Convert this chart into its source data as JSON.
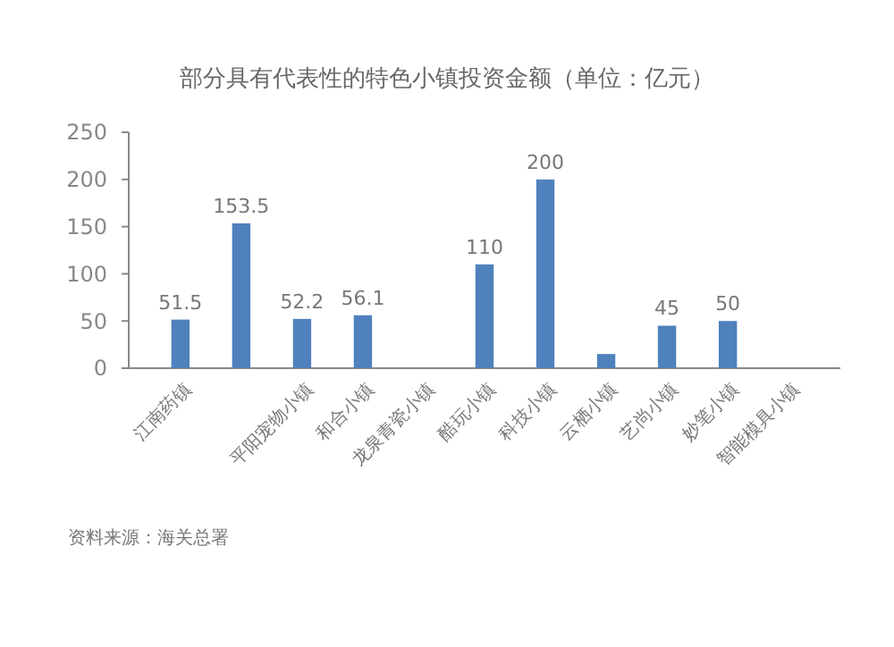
{
  "chart_data": {
    "type": "bar",
    "title": "部分具有代表性的特色小镇投资金额（单位：亿元）",
    "categories": [
      "江南药镇",
      null,
      "平阳宠物小镇",
      "和合小镇",
      "龙泉青瓷小镇",
      "酷玩小镇",
      "科技小镇",
      "云栖小镇",
      "艺尚小镇",
      "妙笔小镇",
      "智能模具小镇"
    ],
    "values": [
      51.5,
      153.5,
      52.2,
      56.1,
      null,
      110,
      200,
      15,
      45,
      50,
      null
    ],
    "value_labels": [
      "51.5",
      "153.5",
      "52.2",
      "56.1",
      null,
      "110",
      "200",
      null,
      "45",
      "50",
      null
    ],
    "color": "#4f81bd",
    "ylim": [
      0,
      250
    ],
    "yticks": [
      0,
      50,
      100,
      150,
      200,
      250
    ],
    "grid": false,
    "annotations": [
      "资料来源：海关总署"
    ]
  }
}
